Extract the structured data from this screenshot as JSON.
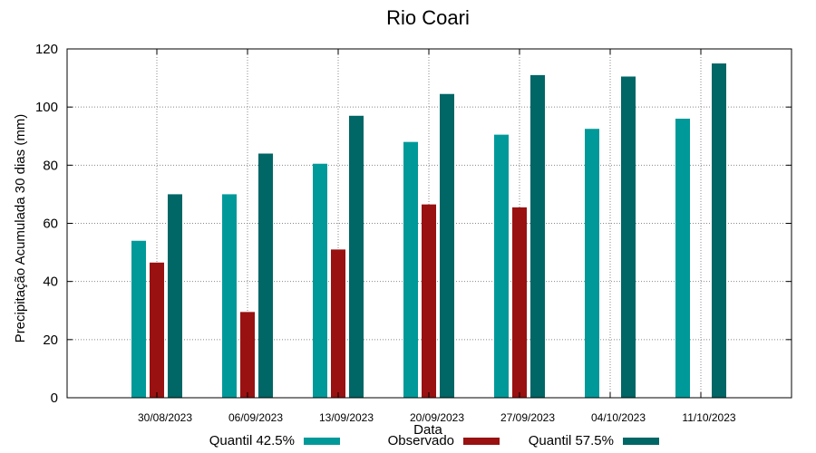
{
  "chart_data": {
    "type": "bar",
    "title": "Rio Coari",
    "xlabel": "Data",
    "ylabel": "Precipitação Acumulada 30 dias (mm)",
    "ylim": [
      0,
      120
    ],
    "yticks": [
      0,
      20,
      40,
      60,
      80,
      100,
      120
    ],
    "grid": true,
    "legend_position": "bottom",
    "categories": [
      "30/08/2023",
      "06/09/2023",
      "13/09/2023",
      "20/09/2023",
      "27/09/2023",
      "04/10/2023",
      "11/10/2023"
    ],
    "series": [
      {
        "name": "Quantil 42.5%",
        "color": "#009999",
        "values": [
          54,
          70,
          80.5,
          88,
          90.5,
          92.5,
          96
        ]
      },
      {
        "name": "Observado",
        "color": "#991111",
        "values": [
          46.5,
          29.5,
          51,
          66.5,
          65.5,
          null,
          null
        ]
      },
      {
        "name": "Quantil 57.5%",
        "color": "#006666",
        "values": [
          70,
          84,
          97,
          104.5,
          111,
          110.5,
          115
        ]
      }
    ]
  }
}
